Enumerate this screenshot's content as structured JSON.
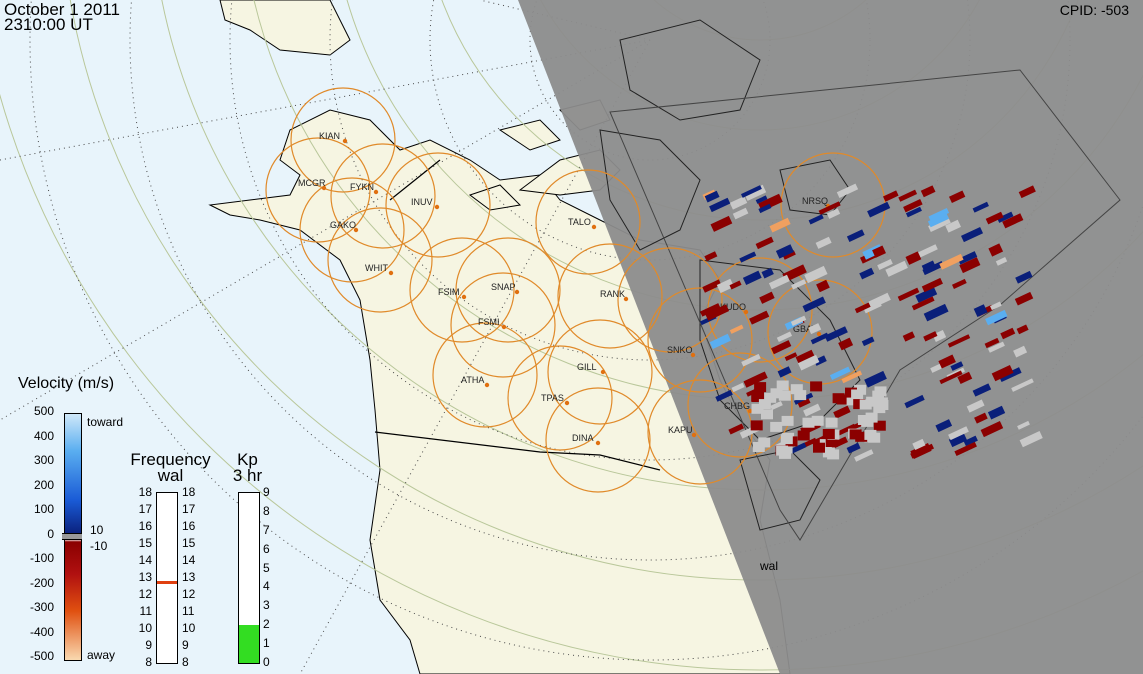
{
  "header": {
    "date": "October  1 2011",
    "time": "2310:00 UT",
    "cpid": "CPID:  -503"
  },
  "stations": [
    {
      "name": "KIAN"
    },
    {
      "name": "MCGR"
    },
    {
      "name": "FYKN"
    },
    {
      "name": "INUV"
    },
    {
      "name": "GAKO"
    },
    {
      "name": "TALO"
    },
    {
      "name": "WHIT"
    },
    {
      "name": "FSIM"
    },
    {
      "name": "SNAP"
    },
    {
      "name": "FSMI"
    },
    {
      "name": "RANK"
    },
    {
      "name": "ATHA"
    },
    {
      "name": "GILL"
    },
    {
      "name": "TPAS"
    },
    {
      "name": "DINA"
    },
    {
      "name": "KAPU"
    },
    {
      "name": "SNKO"
    },
    {
      "name": "KUDO"
    },
    {
      "name": "GBAY"
    },
    {
      "name": "NRSQ"
    },
    {
      "name": "CHBG"
    }
  ],
  "radar_label": "wal",
  "velocity_scale": {
    "title": "Velocity (m/s)",
    "ticks": [
      "500",
      "400",
      "300",
      "200",
      "100",
      "0",
      "-100",
      "-200",
      "-300",
      "-400",
      "-500"
    ],
    "toward_label": "toward",
    "away_label": "away",
    "zero_upper": "10",
    "zero_lower": "-10"
  },
  "frequency_scale": {
    "title": "Frequency",
    "subtitle": "wal",
    "ticks": [
      "18",
      "17",
      "16",
      "15",
      "14",
      "13",
      "12",
      "11",
      "10",
      "9",
      "8"
    ],
    "current_value": 12.75
  },
  "kp_scale": {
    "title": "Kp",
    "subtitle": "3 hr",
    "ticks": [
      "9",
      "8",
      "7",
      "6",
      "5",
      "4",
      "3",
      "2",
      "1",
      "0"
    ],
    "current_value": 2
  },
  "colors": {
    "ocean": "#e8f4fb",
    "land": "#f6f5e2",
    "night": "#8c8c8c",
    "fov_circle": "#e08a2a",
    "away_dark": "#8b0000",
    "toward_dark": "#0a1f7a",
    "ground_scatter": "#c8c8c8",
    "kp_fill": "#33dd22",
    "freq_marker": "#e04010"
  }
}
